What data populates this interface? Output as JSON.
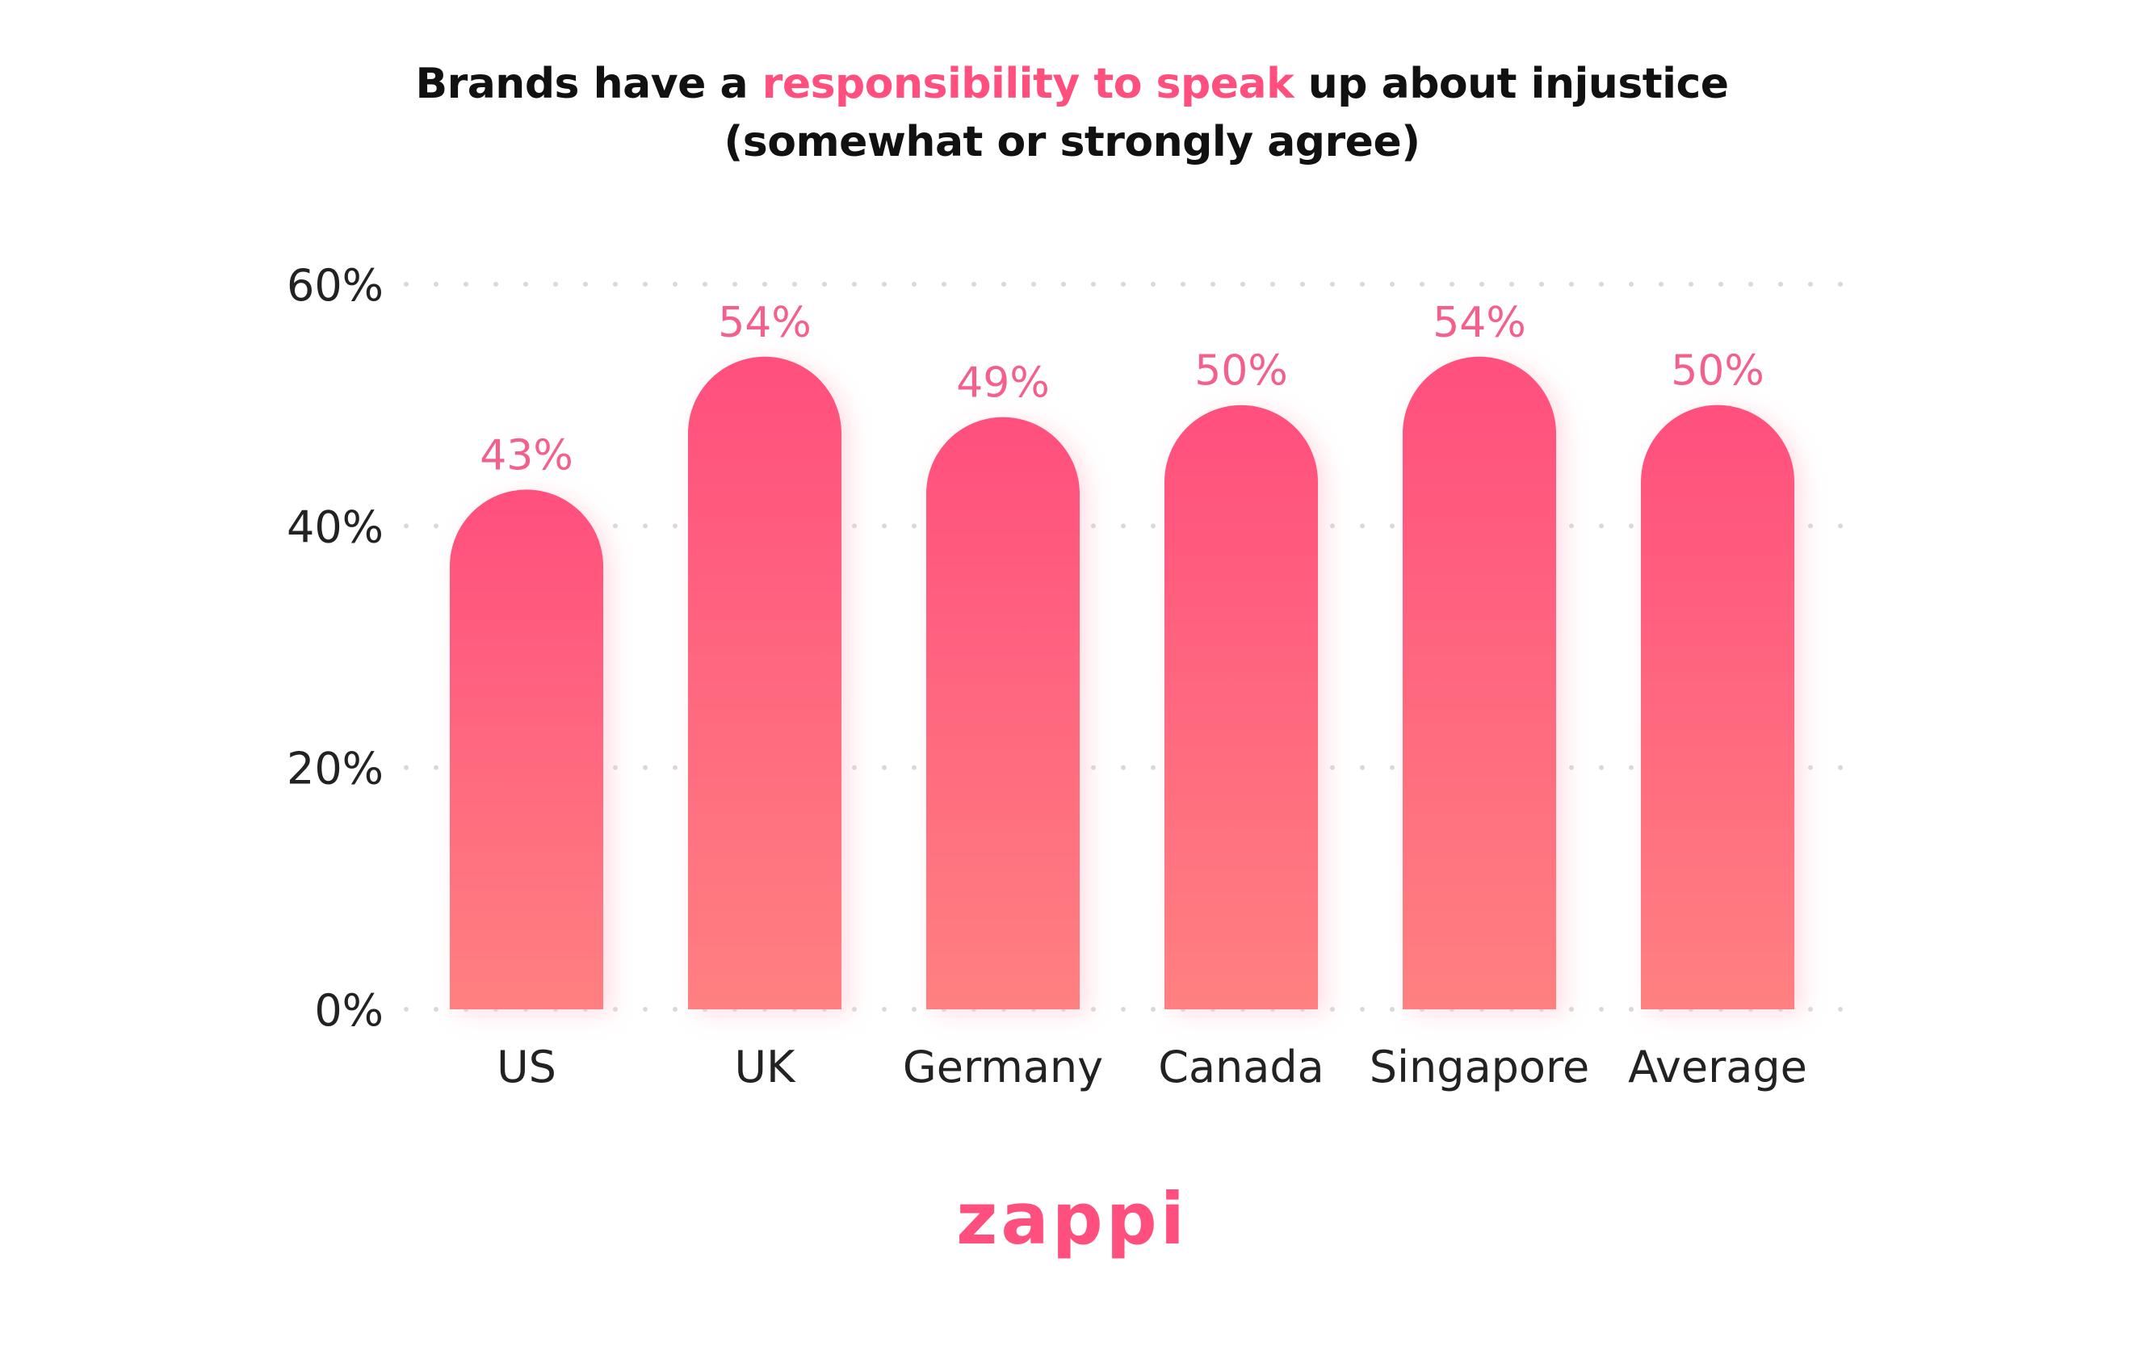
{
  "title": {
    "line1_before": "Brands have a",
    "line1_highlight": "responsibility to speak",
    "line1_after": "up about injustice",
    "line2": "(somewhat or strongly agree)"
  },
  "colors": {
    "highlight": "#ff4f7e",
    "bar_top": "#ff4f7e",
    "bar_bottom": "#ff8080",
    "value_label": "#f4608c",
    "grid_dot": "#d9d9d9",
    "text": "#222222"
  },
  "chart_data": {
    "type": "bar",
    "categories": [
      "US",
      "UK",
      "Germany",
      "Canada",
      "Singapore",
      "Average"
    ],
    "values": [
      43,
      54,
      49,
      50,
      54,
      50
    ],
    "value_labels": [
      "43%",
      "54%",
      "49%",
      "50%",
      "54%",
      "50%"
    ],
    "yticks": [
      0,
      20,
      40,
      60
    ],
    "ytick_labels": [
      "0%",
      "20%",
      "40%",
      "60%"
    ],
    "ylim": [
      0,
      60
    ],
    "grid": "dotted-horizontal",
    "legend": "none"
  },
  "logo": {
    "text": "zappi",
    "icon": "zappi-logo"
  }
}
